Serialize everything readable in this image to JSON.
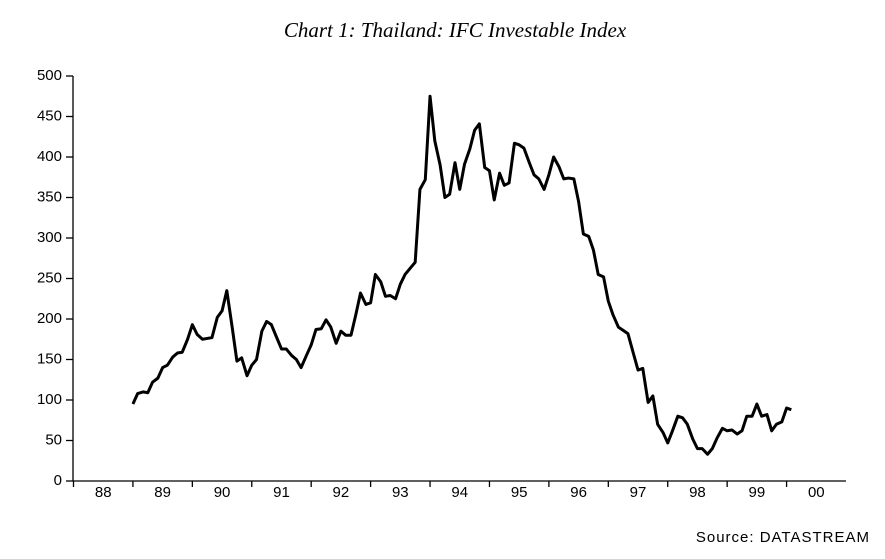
{
  "chart_data": {
    "type": "line",
    "title": "Chart 1: Thailand: IFC Investable Index",
    "source": "Source: DATASTREAM",
    "x": [
      1989,
      1989.08,
      1989.17,
      1989.25,
      1989.33,
      1989.42,
      1989.5,
      1989.58,
      1989.67,
      1989.75,
      1989.83,
      1989.92,
      1990,
      1990.08,
      1990.17,
      1990.25,
      1990.33,
      1990.42,
      1990.5,
      1990.58,
      1990.67,
      1990.75,
      1990.83,
      1990.92,
      1991,
      1991.08,
      1991.17,
      1991.25,
      1991.33,
      1991.42,
      1991.5,
      1991.58,
      1991.67,
      1991.75,
      1991.83,
      1991.92,
      1992,
      1992.08,
      1992.17,
      1992.25,
      1992.33,
      1992.42,
      1992.5,
      1992.58,
      1992.67,
      1992.75,
      1992.83,
      1992.92,
      1993,
      1993.08,
      1993.17,
      1993.25,
      1993.33,
      1993.42,
      1993.5,
      1993.58,
      1993.67,
      1993.75,
      1993.83,
      1993.92,
      1994,
      1994.08,
      1994.17,
      1994.25,
      1994.33,
      1994.42,
      1994.5,
      1994.58,
      1994.67,
      1994.75,
      1994.83,
      1994.92,
      1995,
      1995.08,
      1995.17,
      1995.25,
      1995.33,
      1995.42,
      1995.5,
      1995.58,
      1995.67,
      1995.75,
      1995.83,
      1995.92,
      1996,
      1996.08,
      1996.17,
      1996.25,
      1996.33,
      1996.42,
      1996.5,
      1996.58,
      1996.67,
      1996.75,
      1996.83,
      1996.92,
      1997,
      1997.08,
      1997.17,
      1997.25,
      1997.33,
      1997.42,
      1997.5,
      1997.58,
      1997.67,
      1997.75,
      1997.83,
      1997.92,
      1998,
      1998.08,
      1998.17,
      1998.25,
      1998.33,
      1998.42,
      1998.5,
      1998.58,
      1998.67,
      1998.75,
      1998.83,
      1998.92,
      1999,
      1999.08,
      1999.17,
      1999.25,
      1999.33,
      1999.42,
      1999.5,
      1999.58,
      1999.67,
      1999.75,
      1999.83,
      1999.92,
      2000,
      2000.08
    ],
    "values": [
      95,
      108,
      110,
      109,
      122,
      127,
      140,
      143,
      153,
      158,
      159,
      175,
      193,
      181,
      175,
      176,
      177,
      202,
      210,
      235,
      190,
      148,
      152,
      130,
      143,
      150,
      185,
      197,
      193,
      177,
      163,
      163,
      155,
      150,
      140,
      155,
      168,
      187,
      188,
      199,
      190,
      170,
      185,
      180,
      180,
      205,
      232,
      218,
      220,
      255,
      246,
      228,
      229,
      225,
      243,
      255,
      263,
      270,
      360,
      372,
      475,
      420,
      390,
      350,
      354,
      393,
      360,
      391,
      410,
      433,
      441,
      387,
      383,
      347,
      380,
      365,
      368,
      417,
      415,
      411,
      393,
      378,
      373,
      360,
      378,
      400,
      388,
      373,
      374,
      373,
      345,
      305,
      302,
      285,
      255,
      252,
      222,
      205,
      190,
      186,
      182,
      158,
      137,
      139,
      97,
      105,
      70,
      60,
      47,
      62,
      80,
      78,
      70,
      52,
      40,
      40,
      33,
      40,
      53,
      65,
      62,
      63,
      58,
      62,
      80,
      80,
      95,
      80,
      82,
      62,
      70,
      73,
      90,
      88
    ],
    "color": "#000000",
    "xlim": [
      1988,
      2001
    ],
    "xticks": [
      {
        "value": 1988,
        "label": "88"
      },
      {
        "value": 1989,
        "label": "89"
      },
      {
        "value": 1990,
        "label": "90"
      },
      {
        "value": 1991,
        "label": "91"
      },
      {
        "value": 1992,
        "label": "92"
      },
      {
        "value": 1993,
        "label": "93"
      },
      {
        "value": 1994,
        "label": "94"
      },
      {
        "value": 1995,
        "label": "95"
      },
      {
        "value": 1996,
        "label": "96"
      },
      {
        "value": 1997,
        "label": "97"
      },
      {
        "value": 1998,
        "label": "98"
      },
      {
        "value": 1999,
        "label": "99"
      },
      {
        "value": 2000,
        "label": "00"
      }
    ],
    "ylim": [
      0,
      500
    ],
    "yticks": [
      0,
      50,
      100,
      150,
      200,
      250,
      300,
      350,
      400,
      450,
      500
    ]
  }
}
